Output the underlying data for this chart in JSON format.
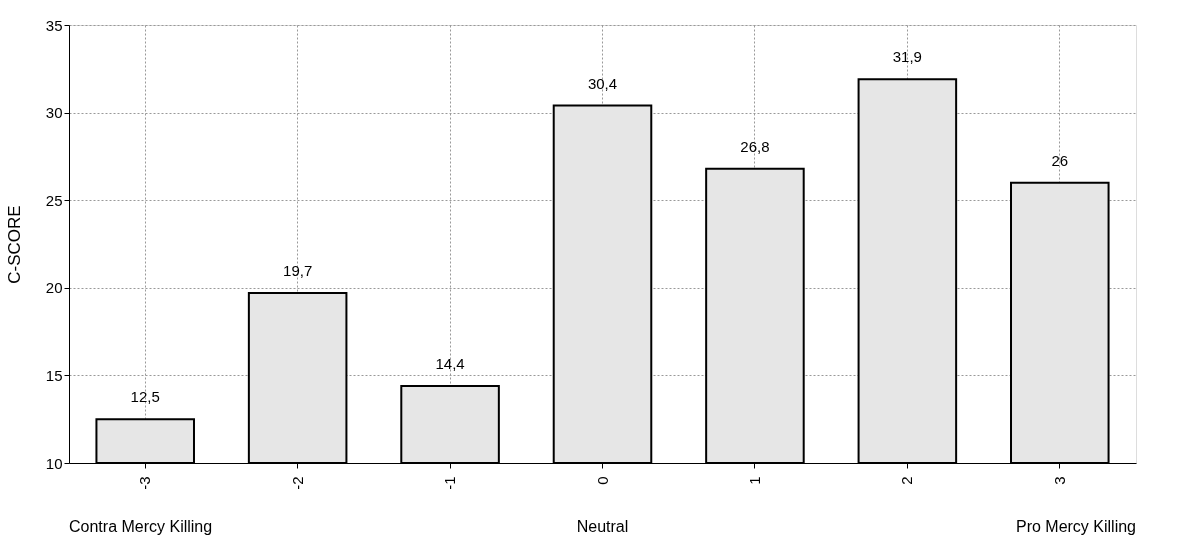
{
  "chart_data": {
    "type": "bar",
    "ylabel": "C-SCORE",
    "categories": [
      "-3",
      "-2",
      "-1",
      "0",
      "1",
      "2",
      "3"
    ],
    "values": [
      12.5,
      19.7,
      14.4,
      30.4,
      26.8,
      31.9,
      26
    ],
    "value_labels": [
      "12,5",
      "19,7",
      "14,4",
      "30,4",
      "26,8",
      "31,9",
      "26"
    ],
    "color": "#e6e6e6",
    "ylim": [
      10,
      35
    ],
    "yticks": [
      10,
      15,
      20,
      25,
      30,
      35
    ],
    "grid": true,
    "annotations": [
      "Contra Mercy Killing",
      "Neutral",
      "Pro Mercy Killing"
    ]
  }
}
